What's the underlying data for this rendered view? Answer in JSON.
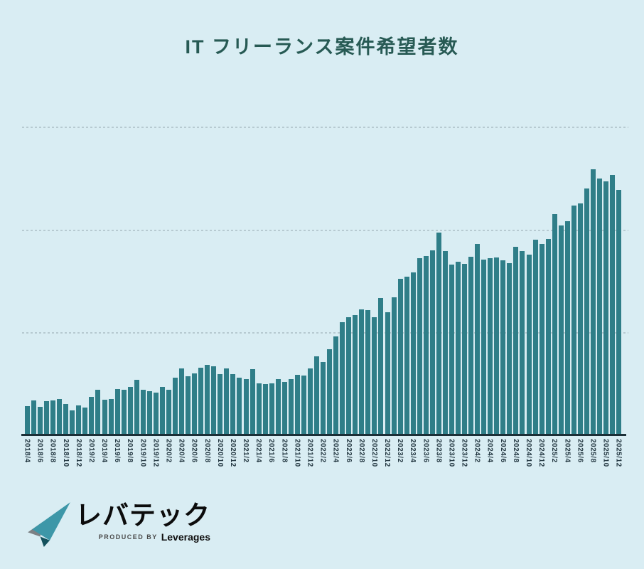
{
  "page": {
    "background_color": "#d9edf3"
  },
  "chart_data": {
    "type": "bar",
    "title": "IT フリーランス案件希望者数",
    "xlabel": "",
    "ylabel": "",
    "y_axis_labels": "none",
    "legend": "none",
    "grid_style": "dotted-horizontal",
    "x_tick_every": 2,
    "x_tick_rotation": "vertical",
    "ylim": [
      0,
      432
    ],
    "gridline_values": [
      143,
      287,
      432
    ],
    "bar_color": "#2f7e88",
    "gridline_color": "#b7cad1",
    "axis_line_color": "#1b2f37",
    "tick_label_color": "#243842",
    "title_color": "#275a54",
    "x": [
      "2018/4",
      "2018/5",
      "2018/6",
      "2018/7",
      "2018/8",
      "2018/9",
      "2018/10",
      "2018/11",
      "2018/12",
      "2019/1",
      "2019/2",
      "2019/3",
      "2019/4",
      "2019/5",
      "2019/6",
      "2019/7",
      "2019/8",
      "2019/9",
      "2019/10",
      "2019/11",
      "2019/12",
      "2020/1",
      "2020/2",
      "2020/3",
      "2020/4",
      "2020/5",
      "2020/6",
      "2020/7",
      "2020/8",
      "2020/9",
      "2020/10",
      "2020/11",
      "2020/12",
      "2021/1",
      "2021/2",
      "2021/3",
      "2021/4",
      "2021/5",
      "2021/6",
      "2021/7",
      "2021/8",
      "2021/9",
      "2021/10",
      "2021/11",
      "2021/12",
      "2022/1",
      "2022/2",
      "2022/3",
      "2022/4",
      "2022/5",
      "2022/6",
      "2022/7",
      "2022/8",
      "2022/9",
      "2022/10",
      "2022/11",
      "2022/12",
      "2023/1",
      "2023/2",
      "2023/3",
      "2023/4",
      "2023/5",
      "2023/6",
      "2023/7",
      "2023/8",
      "2023/9",
      "2023/10",
      "2023/11",
      "2023/12",
      "2024/1",
      "2024/2",
      "2024/3",
      "2024/4",
      "2024/5",
      "2024/6",
      "2024/7",
      "2024/8",
      "2024/9",
      "2024/10",
      "2024/11",
      "2024/12",
      "2025/1",
      "2025/2",
      "2025/3",
      "2025/4",
      "2025/5",
      "2025/6",
      "2025/7",
      "2025/8",
      "2025/9",
      "2025/10",
      "2025/11",
      "2025/12"
    ],
    "values": [
      39,
      47,
      38,
      46,
      47,
      49,
      42,
      33,
      40,
      37,
      52,
      62,
      48,
      49,
      63,
      62,
      66,
      76,
      62,
      60,
      58,
      66,
      62,
      79,
      92,
      81,
      85,
      93,
      97,
      95,
      84,
      92,
      84,
      79,
      77,
      91,
      71,
      70,
      71,
      77,
      73,
      77,
      83,
      82,
      92,
      109,
      101,
      119,
      137,
      157,
      164,
      167,
      175,
      174,
      164,
      191,
      171,
      192,
      218,
      221,
      227,
      247,
      250,
      258,
      283,
      257,
      238,
      242,
      239,
      249,
      267,
      245,
      247,
      248,
      244,
      240,
      263,
      257,
      252,
      273,
      267,
      274,
      309,
      293,
      299,
      321,
      324,
      345,
      372,
      359,
      355,
      364,
      343
    ]
  },
  "footer": {
    "logo_text": "レバテック",
    "produced_by": "PRODUCED BY",
    "company": "Leverages",
    "logo_mark_colors": {
      "blade": "#3d97a8",
      "wing": "#7c8184",
      "tail": "#13515c"
    }
  }
}
